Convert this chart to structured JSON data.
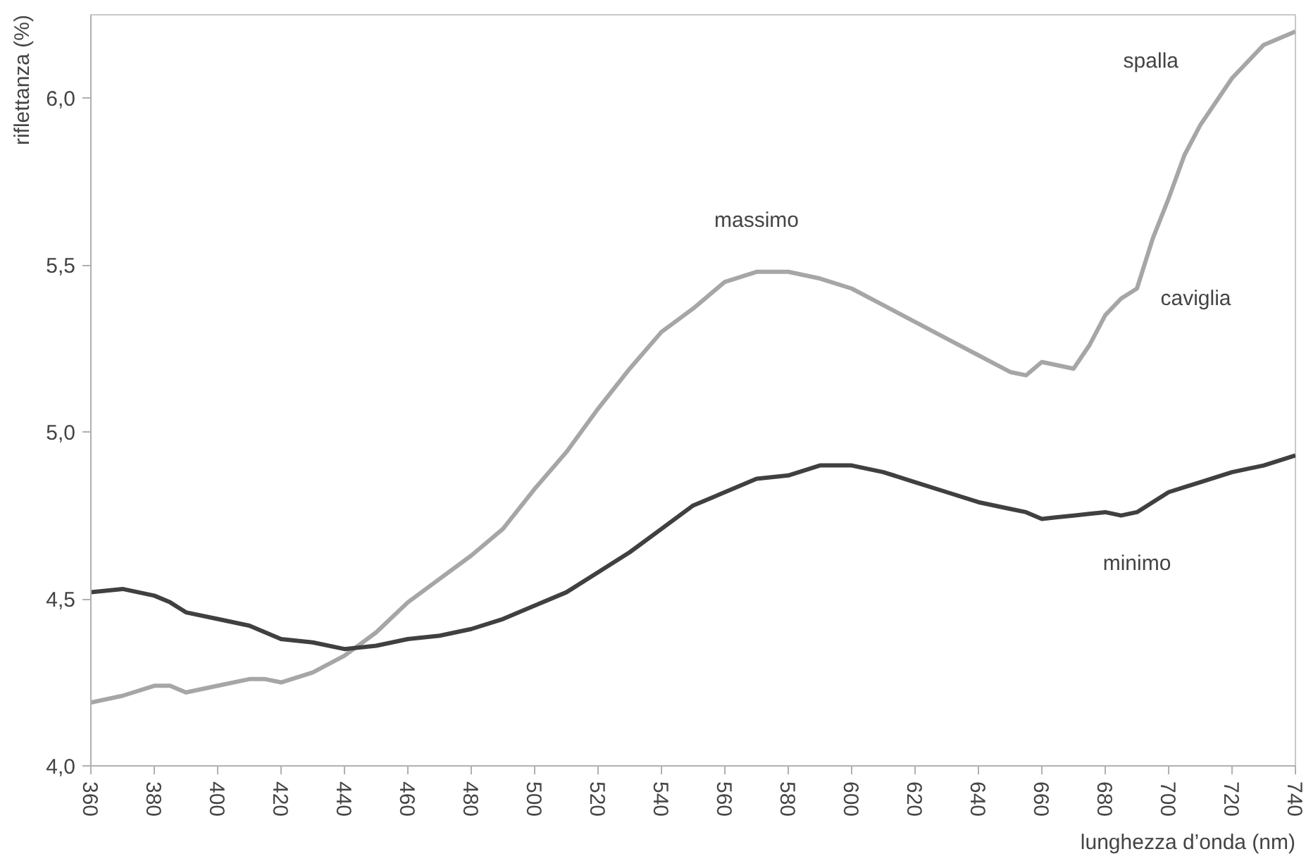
{
  "chart_data": {
    "type": "line",
    "xlabel": "lunghezza d’onda (nm)",
    "ylabel": "riflettanza (%)",
    "x": [
      360,
      370,
      380,
      385,
      390,
      400,
      410,
      415,
      420,
      430,
      440,
      450,
      460,
      470,
      480,
      490,
      500,
      510,
      520,
      530,
      540,
      550,
      560,
      570,
      580,
      590,
      600,
      610,
      620,
      630,
      640,
      650,
      655,
      660,
      665,
      670,
      675,
      680,
      685,
      690,
      695,
      700,
      705,
      710,
      720,
      730,
      740
    ],
    "series": [
      {
        "color": "#a6a6a6",
        "values": [
          4.19,
          4.21,
          4.24,
          4.24,
          4.22,
          4.24,
          4.26,
          4.26,
          4.25,
          4.28,
          4.33,
          4.4,
          4.49,
          4.56,
          4.63,
          4.71,
          4.83,
          4.94,
          5.07,
          5.19,
          5.3,
          5.37,
          5.45,
          5.48,
          5.48,
          5.46,
          5.43,
          5.38,
          5.33,
          5.28,
          5.23,
          5.18,
          5.17,
          5.21,
          5.2,
          5.19,
          5.26,
          5.35,
          5.4,
          5.43,
          5.58,
          5.7,
          5.83,
          5.92,
          6.06,
          6.16,
          6.2
        ]
      },
      {
        "color": "#404040",
        "values": [
          4.52,
          4.53,
          4.51,
          4.49,
          4.46,
          4.44,
          4.42,
          4.4,
          4.38,
          4.37,
          4.35,
          4.36,
          4.38,
          4.39,
          4.41,
          4.44,
          4.48,
          4.52,
          4.58,
          4.64,
          4.71,
          4.78,
          4.82,
          4.86,
          4.87,
          4.9,
          4.9,
          4.88,
          4.85,
          4.82,
          4.79,
          4.77,
          4.76,
          4.74,
          4.745,
          4.75,
          4.755,
          4.76,
          4.75,
          4.76,
          4.79,
          4.82,
          4.835,
          4.85,
          4.88,
          4.9,
          4.93
        ]
      }
    ],
    "annotations": [
      {
        "text": "massimo",
        "x": 570,
        "y": 5.48
      },
      {
        "text": "spalla",
        "x": 720,
        "y": 6.06
      },
      {
        "text": "caviglia",
        "x": 685,
        "y": 5.4
      },
      {
        "text": "minimo",
        "x": 690,
        "y": 4.76
      }
    ],
    "xlim": [
      360,
      740
    ],
    "ylim": [
      4.0,
      6.25
    ],
    "xticks": [
      360,
      380,
      400,
      420,
      440,
      460,
      480,
      500,
      520,
      540,
      560,
      580,
      600,
      620,
      640,
      660,
      680,
      700,
      720,
      740
    ],
    "yticks": [
      {
        "value": 4.0,
        "label": "4,0"
      },
      {
        "value": 4.5,
        "label": "4,5"
      },
      {
        "value": 5.0,
        "label": "5,0"
      },
      {
        "value": 5.5,
        "label": "5,5"
      },
      {
        "value": 6.0,
        "label": "6,0"
      }
    ],
    "grid": false,
    "marker": "none",
    "line_style": "solid"
  }
}
